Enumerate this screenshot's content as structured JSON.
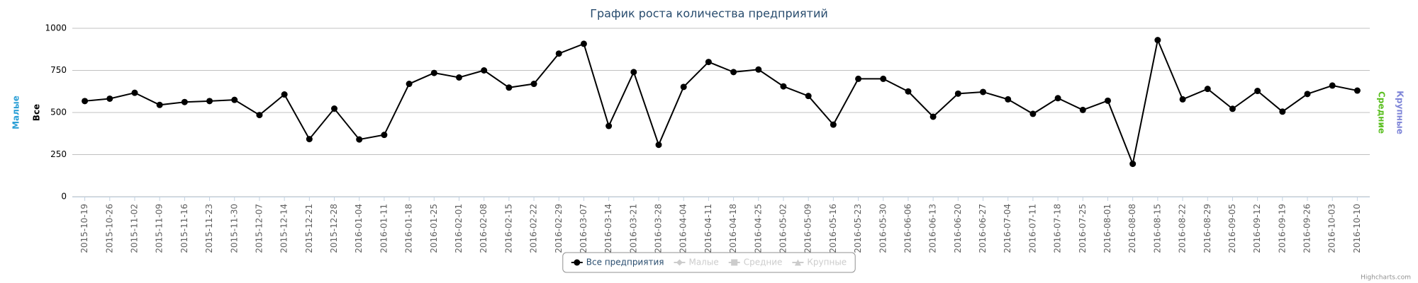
{
  "chart_data": {
    "type": "line",
    "title": "График роста количества предприятий",
    "categories": [
      "2015-10-19",
      "2015-10-26",
      "2015-11-02",
      "2015-11-09",
      "2015-11-16",
      "2015-11-23",
      "2015-11-30",
      "2015-12-07",
      "2015-12-14",
      "2015-12-21",
      "2015-12-28",
      "2016-01-04",
      "2016-01-11",
      "2016-01-18",
      "2016-01-25",
      "2016-02-01",
      "2016-02-08",
      "2016-02-15",
      "2016-02-22",
      "2016-02-29",
      "2016-03-07",
      "2016-03-14",
      "2016-03-21",
      "2016-03-28",
      "2016-04-04",
      "2016-04-11",
      "2016-04-18",
      "2016-04-25",
      "2016-05-02",
      "2016-05-09",
      "2016-05-16",
      "2016-05-23",
      "2016-05-30",
      "2016-06-06",
      "2016-06-13",
      "2016-06-20",
      "2016-06-27",
      "2016-07-04",
      "2016-07-11",
      "2016-07-18",
      "2016-07-25",
      "2016-08-01",
      "2016-08-08",
      "2016-08-15",
      "2016-08-22",
      "2016-08-29",
      "2016-09-05",
      "2016-09-12",
      "2016-09-19",
      "2016-09-26",
      "2016-10-03",
      "2016-10-10"
    ],
    "series": [
      {
        "name": "Все предприятия",
        "color": "#000000",
        "marker": "circle",
        "visible": true,
        "values": [
          568,
          582,
          617,
          545,
          562,
          568,
          575,
          485,
          607,
          342,
          523,
          340,
          367,
          670,
          735,
          708,
          750,
          648,
          670,
          850,
          908,
          420,
          740,
          308,
          652,
          800,
          740,
          755,
          655,
          598,
          428,
          700,
          700,
          625,
          475,
          612,
          622,
          578,
          492,
          585,
          515,
          570,
          195,
          930,
          578,
          640,
          522,
          628,
          505,
          610,
          660,
          630
        ]
      },
      {
        "name": "Малые",
        "color": "#cccccc",
        "marker": "diamond",
        "visible": false
      },
      {
        "name": "Средние",
        "color": "#cccccc",
        "marker": "square",
        "visible": false
      },
      {
        "name": "Крупные",
        "color": "#cccccc",
        "marker": "triangle",
        "visible": false
      }
    ],
    "axes": [
      {
        "title": "Малые",
        "color": "#2b9fd6",
        "side": "left"
      },
      {
        "title": "Все",
        "color": "#000000",
        "side": "left"
      },
      {
        "title": "Средние",
        "color": "#5bbf21",
        "side": "right"
      },
      {
        "title": "Крупные",
        "color": "#7f86d8",
        "side": "right"
      }
    ],
    "ylim": [
      0,
      1000
    ],
    "yticks": [
      0,
      250,
      500,
      750,
      1000
    ],
    "grid": true,
    "legend": "bottom",
    "credits": "Highcharts.com"
  }
}
